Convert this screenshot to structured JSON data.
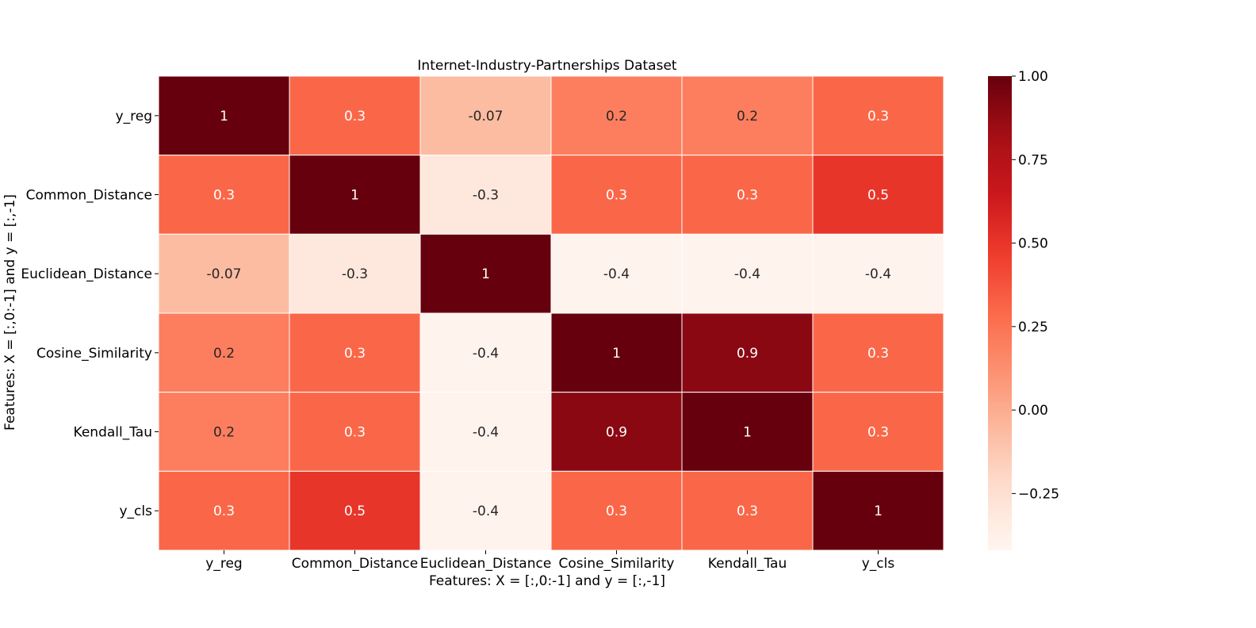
{
  "chart_data": {
    "type": "heatmap",
    "title": "Internet-Industry-Partnerships Dataset",
    "xlabel": "Features: X = [:,0:-1] and y = [:,-1]",
    "ylabel": "Features: X = [:,0:-1] and y = [:,-1]",
    "x_categories": [
      "y_reg",
      "Common_Distance",
      "Euclidean_Distance",
      "Cosine_Similarity",
      "Kendall_Tau",
      "y_cls"
    ],
    "y_categories": [
      "y_reg",
      "Common_Distance",
      "Euclidean_Distance",
      "Cosine_Similarity",
      "Kendall_Tau",
      "y_cls"
    ],
    "values": [
      [
        1,
        0.3,
        -0.07,
        0.2,
        0.2,
        0.3
      ],
      [
        0.3,
        1,
        -0.3,
        0.3,
        0.3,
        0.5
      ],
      [
        -0.07,
        -0.3,
        1,
        -0.4,
        -0.4,
        -0.4
      ],
      [
        0.2,
        0.3,
        -0.4,
        1,
        0.9,
        0.3
      ],
      [
        0.2,
        0.3,
        -0.4,
        0.9,
        1,
        0.3
      ],
      [
        0.3,
        0.5,
        -0.4,
        0.3,
        0.3,
        1
      ]
    ],
    "labels": [
      [
        "1",
        "0.3",
        "-0.07",
        "0.2",
        "0.2",
        "0.3"
      ],
      [
        "0.3",
        "1",
        "-0.3",
        "0.3",
        "0.3",
        "0.5"
      ],
      [
        "-0.07",
        "-0.3",
        "1",
        "-0.4",
        "-0.4",
        "-0.4"
      ],
      [
        "0.2",
        "0.3",
        "-0.4",
        "1",
        "0.9",
        "0.3"
      ],
      [
        "0.2",
        "0.3",
        "-0.4",
        "0.9",
        "1",
        "0.3"
      ],
      [
        "0.3",
        "0.5",
        "-0.4",
        "0.3",
        "0.3",
        "1"
      ]
    ],
    "colormap": "Reds",
    "colorbar": {
      "range": [
        -0.42,
        1.0
      ],
      "ticks": [
        1.0,
        0.75,
        0.5,
        0.25,
        0.0,
        -0.25
      ],
      "tick_labels": [
        "1.00",
        "0.75",
        "0.50",
        "0.25",
        "0.00",
        "−0.25"
      ]
    },
    "grid": false,
    "legend": "colorbar-right"
  }
}
